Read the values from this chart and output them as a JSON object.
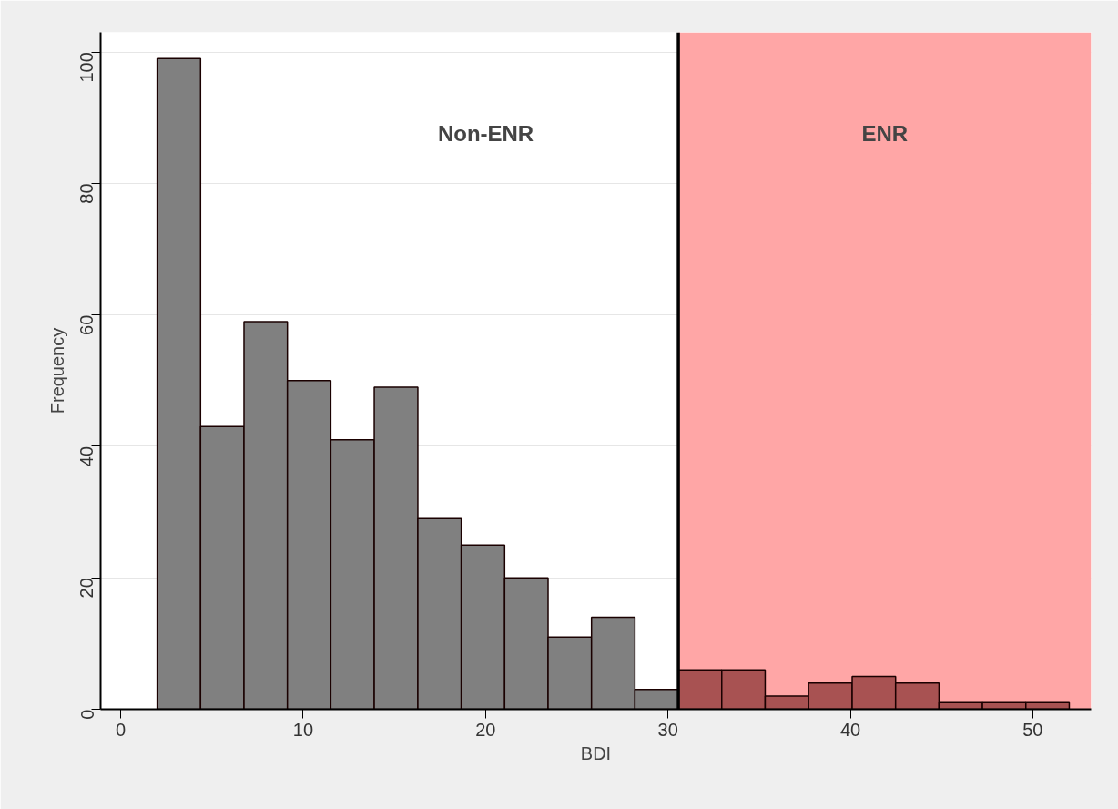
{
  "chart_data": {
    "type": "histogram",
    "xlabel": "BDI",
    "ylabel": "Frequency",
    "bins": [
      2,
      4.38,
      6.76,
      9.14,
      11.52,
      13.9,
      16.29,
      18.67,
      21.05,
      23.43,
      25.81,
      28.19,
      30.57,
      32.95,
      35.33,
      37.71,
      40.1,
      42.48,
      44.86,
      47.24,
      49.62,
      52
    ],
    "values": [
      99,
      43,
      59,
      50,
      41,
      49,
      29,
      25,
      20,
      11,
      14,
      3,
      6,
      6,
      2,
      4,
      5,
      4,
      1,
      1,
      1
    ],
    "colors": [
      "#808080",
      "#808080",
      "#808080",
      "#808080",
      "#808080",
      "#808080",
      "#808080",
      "#808080",
      "#808080",
      "#808080",
      "#808080",
      "#808080",
      "#a85252",
      "#a85252",
      "#a85252",
      "#a85252",
      "#a85252",
      "#a85252",
      "#a85252",
      "#a85252",
      "#a85252"
    ],
    "xlim": [
      -1.1,
      53.2
    ],
    "ylim": [
      0,
      103
    ],
    "xticks": [
      0,
      10,
      20,
      30,
      40,
      50
    ],
    "yticks": [
      0,
      20,
      40,
      60,
      80,
      100
    ],
    "grid": "y",
    "ref_lines": [
      {
        "axis": "x",
        "value": 30.57,
        "color": "#000000"
      }
    ],
    "bands": [
      {
        "axis": "x",
        "from": 30.57,
        "to": 53.2,
        "color": "#ffa6a6",
        "label": "ENR"
      }
    ],
    "annotations": [
      "Non-ENR"
    ]
  }
}
